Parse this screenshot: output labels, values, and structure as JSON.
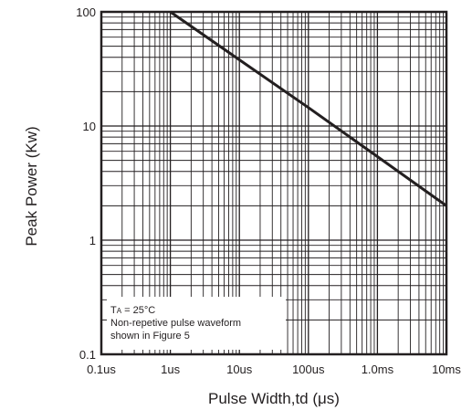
{
  "chart_data": {
    "type": "line",
    "title": "",
    "xlabel": "Pulse Width,td (μs)",
    "ylabel": "Peak Power (Kw)",
    "xscale": "log",
    "yscale": "log",
    "x_unit": "μs",
    "xlim": [
      0.1,
      10000
    ],
    "ylim": [
      0.1,
      100
    ],
    "x_ticks": [
      0.1,
      1,
      10,
      100,
      1000,
      10000
    ],
    "x_tick_labels": [
      "0.1us",
      "1us",
      "10us",
      "100us",
      "1.0ms",
      "10ms"
    ],
    "y_ticks": [
      0.1,
      1,
      10,
      100
    ],
    "y_tick_labels": [
      "0.1",
      "1",
      "10",
      "100"
    ],
    "grid": true,
    "series": [
      {
        "x": [
          1,
          10,
          100,
          1000,
          10000
        ],
        "y": [
          100,
          38,
          14.5,
          5.4,
          2.0
        ]
      }
    ],
    "annotation": {
      "line1_main": "T",
      "line1_sub": "A",
      "line1_rest": " = 25°C",
      "line2": "Non-repetive pulse waveform",
      "line3": "shown in Figure 5"
    },
    "colors": {
      "line": "#231f20",
      "grid": "#231f20",
      "background": "#ffffff"
    }
  }
}
